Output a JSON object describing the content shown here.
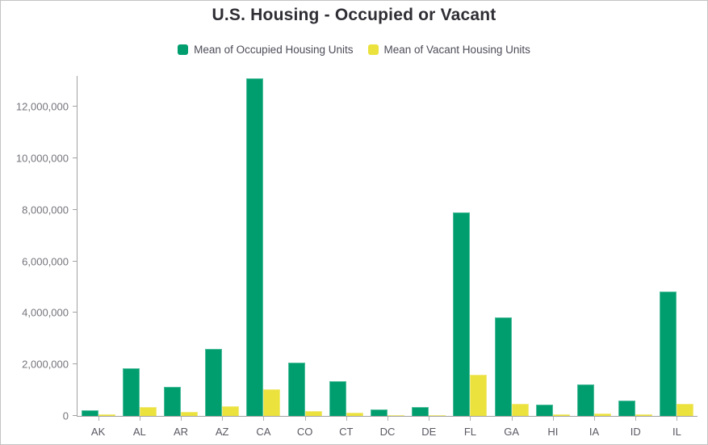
{
  "title": "U.S. Housing - Occupied or Vacant",
  "chart_data": {
    "type": "bar",
    "title": "U.S. Housing - Occupied or Vacant",
    "xlabel": "",
    "ylabel": "",
    "grid": false,
    "legend_position": "top",
    "categories": [
      "AK",
      "AL",
      "AR",
      "AZ",
      "CA",
      "CO",
      "CT",
      "DC",
      "DE",
      "FL",
      "GA",
      "HI",
      "IA",
      "ID",
      "IL"
    ],
    "series": [
      {
        "name": "Mean of Occupied Housing Units",
        "color": "#009E6F",
        "border_color": "#4FBD9B",
        "values": [
          230000,
          1860000,
          1130000,
          2610000,
          13100000,
          2080000,
          1360000,
          260000,
          330000,
          7910000,
          3810000,
          430000,
          1230000,
          610000,
          4840000
        ]
      },
      {
        "name": "Mean of Vacant Housing Units",
        "color": "#EBE23E",
        "border_color": "#F1EA7D",
        "values": [
          50000,
          350000,
          160000,
          370000,
          1050000,
          200000,
          120000,
          30000,
          45000,
          1590000,
          460000,
          55000,
          95000,
          55000,
          470000
        ]
      }
    ],
    "ylim": [
      0,
      13200000
    ],
    "yticks": [
      0,
      2000000,
      4000000,
      6000000,
      8000000,
      10000000,
      12000000
    ]
  }
}
